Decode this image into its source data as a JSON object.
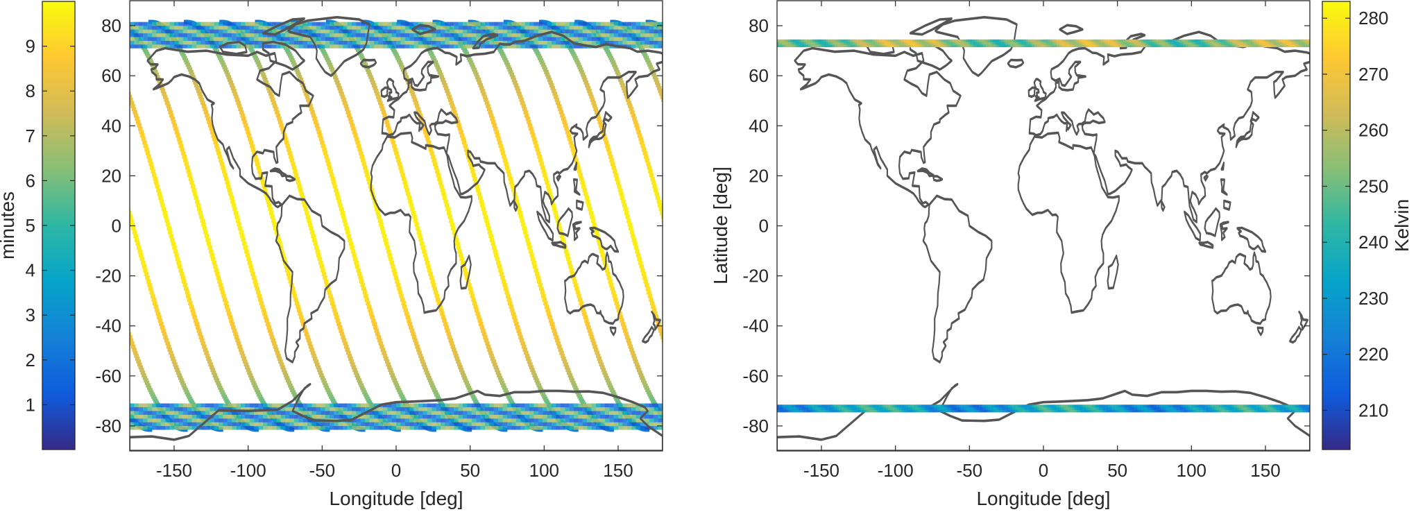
{
  "chart_data": [
    {
      "type": "heatmap",
      "description_key": "left-panel",
      "xlabel": "Longitude [deg]",
      "ylabel": "",
      "xlim": [
        -180,
        180
      ],
      "ylim": [
        -90,
        90
      ],
      "xticks": [
        -150,
        -100,
        -50,
        0,
        50,
        100,
        150
      ],
      "yticks": [
        80,
        60,
        40,
        20,
        0,
        -20,
        -40,
        -60,
        -80
      ],
      "grid": false,
      "swath_lat_limit": 81.5,
      "num_swaths": 15,
      "swath_start_longitudes": [
        -178,
        -154,
        -130,
        -106,
        -82,
        -58,
        -34,
        -10,
        14,
        38,
        62,
        86,
        110,
        134,
        158
      ],
      "colorbar": {
        "label": "minutes",
        "position": "left",
        "range": [
          0,
          10
        ],
        "ticks": [
          1,
          2,
          3,
          4,
          5,
          6,
          7,
          8,
          9
        ],
        "colormap": "parula",
        "colors": [
          "#352a87",
          "#0f5cdd",
          "#1481d6",
          "#06a4ca",
          "#2eb7a4",
          "#87bf77",
          "#d1bb59",
          "#fec832",
          "#f9fb0e"
        ]
      }
    },
    {
      "type": "heatmap",
      "description_key": "right-panel",
      "xlabel": "Longitude [deg]",
      "ylabel": "Latitude [deg]",
      "xlim": [
        -180,
        180
      ],
      "ylim": [
        -90,
        90
      ],
      "xticks": [
        -150,
        -100,
        -50,
        0,
        50,
        100,
        150
      ],
      "yticks": [
        80,
        60,
        40,
        20,
        0,
        -20,
        -40,
        -60,
        -80
      ],
      "grid": false,
      "bands": [
        {
          "lat_min": 71.5,
          "lat_max": 74.5,
          "value_range": [
            238,
            272
          ]
        },
        {
          "lat_min": -74.5,
          "lat_max": -71.5,
          "value_range": [
            215,
            250
          ]
        }
      ],
      "colorbar": {
        "label": "Kelvin",
        "position": "right",
        "range": [
          203,
          283
        ],
        "ticks": [
          210,
          220,
          230,
          240,
          250,
          260,
          270,
          280
        ],
        "colormap": "parula",
        "colors": [
          "#352a87",
          "#0f5cdd",
          "#1481d6",
          "#06a4ca",
          "#2eb7a4",
          "#87bf77",
          "#d1bb59",
          "#fec832",
          "#f9fb0e"
        ]
      }
    }
  ]
}
